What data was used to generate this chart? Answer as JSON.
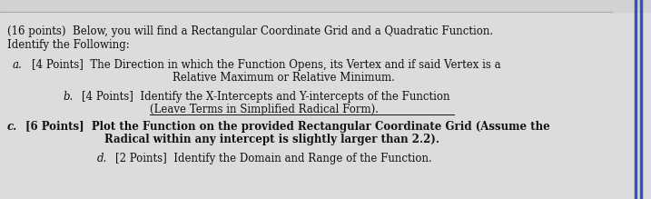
{
  "bg_color": "#dcdcdc",
  "text_color": "#111111",
  "font_family": "serif",
  "font_size": 8.5,
  "top_line_color": "#bbbbbb",
  "right_bar_color": "#3355bb",
  "header_line1": "(16 points)  Below, you will find a Rectangular Coordinate Grid and a Quadratic Function.",
  "header_line2": "Identify the Following:",
  "item_a_label": "a.",
  "item_a_line1": "[4 Points]  The Direction in which the Function Opens, its Vertex and if said Vertex is a",
  "item_a_line2": "Relative Maximum or Relative Minimum.",
  "item_b_label": "b.",
  "item_b_line1": "[4 Points]  Identify the X-Intercepts and Y-intercepts of the Function",
  "item_b_line2": "(Leave Terms in Simplified Radical Form).",
  "item_c_label": "c.",
  "item_c_line1": "[6 Points]  Plot the Function on the provided Rectangular Coordinate Grid (Assume the",
  "item_c_line2": "Radical within any intercept is slightly larger than 2.2).",
  "item_d_label": "d.",
  "item_d_line1": "[2 Points]  Identify the Domain and Range of the Function."
}
